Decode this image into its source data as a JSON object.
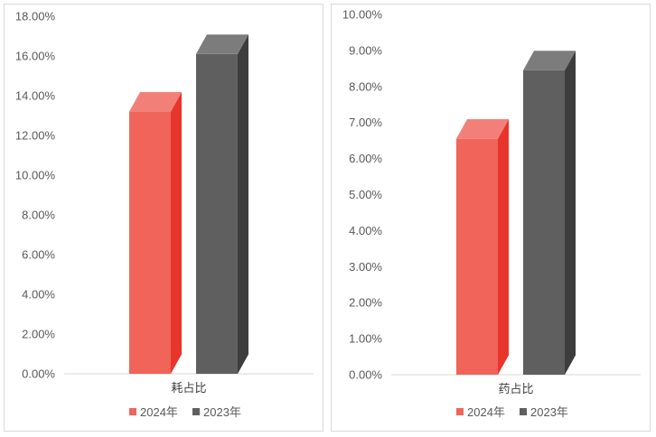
{
  "chart_data": [
    {
      "type": "bar",
      "categories": [
        "耗占比"
      ],
      "series": [
        {
          "name": "2024年",
          "values": [
            13.2
          ],
          "color": "#f0645a"
        },
        {
          "name": "2023年",
          "values": [
            16.1
          ],
          "color": "#5f5f5f"
        }
      ],
      "ylim": [
        0,
        18
      ],
      "yticks": [
        "0.00%",
        "2.00%",
        "4.00%",
        "6.00%",
        "8.00%",
        "10.00%",
        "12.00%",
        "14.00%",
        "16.00%",
        "18.00%"
      ],
      "grid": false,
      "legend": "bottom",
      "three_d": true
    },
    {
      "type": "bar",
      "categories": [
        "药占比"
      ],
      "series": [
        {
          "name": "2024年",
          "values": [
            6.55
          ],
          "color": "#f0645a"
        },
        {
          "name": "2023年",
          "values": [
            8.45
          ],
          "color": "#5f5f5f"
        }
      ],
      "ylim": [
        0,
        10
      ],
      "yticks": [
        "0.00%",
        "1.00%",
        "2.00%",
        "3.00%",
        "4.00%",
        "5.00%",
        "6.00%",
        "7.00%",
        "8.00%",
        "9.00%",
        "10.00%"
      ],
      "grid": false,
      "legend": "bottom",
      "three_d": true
    }
  ]
}
